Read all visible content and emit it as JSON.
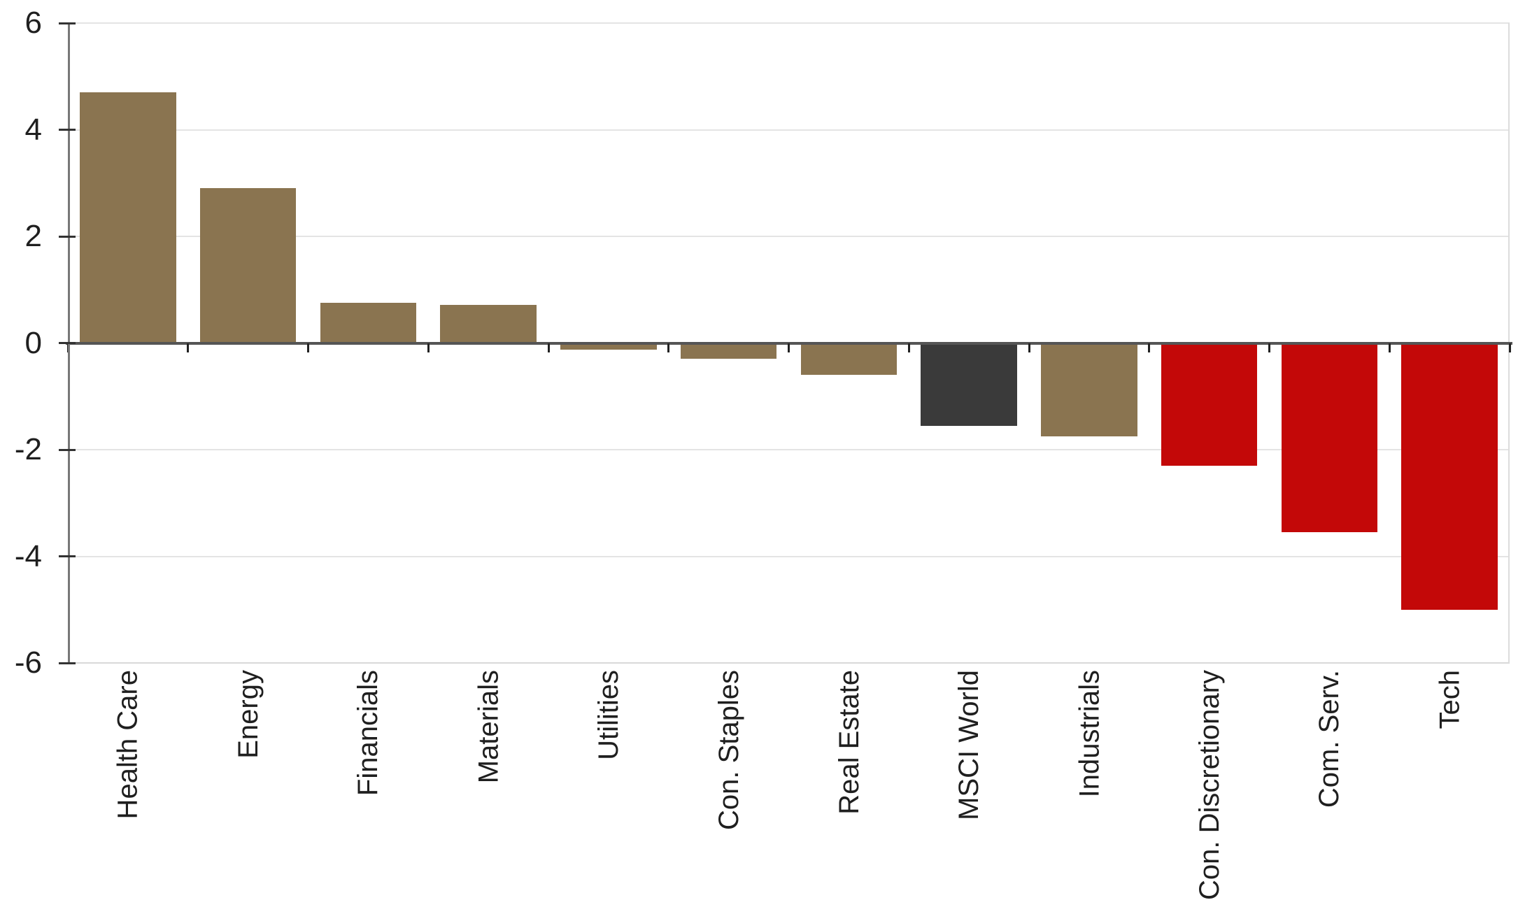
{
  "chart_data": {
    "type": "bar",
    "title": "",
    "xlabel": "",
    "ylabel": "",
    "categories": [
      "Health Care",
      "Energy",
      "Financials",
      "Materials",
      "Utilities",
      "Con. Staples",
      "Real Estate",
      "MSCI World",
      "Industrials",
      "Con. Discretionary",
      "Com. Serv.",
      "Tech"
    ],
    "values": [
      4.7,
      2.9,
      0.75,
      0.72,
      -0.13,
      -0.3,
      -0.6,
      -1.55,
      -1.75,
      -2.3,
      -3.55,
      -5.0
    ],
    "bar_colors": [
      "#8A7450",
      "#8A7450",
      "#8A7450",
      "#8A7450",
      "#8A7450",
      "#8A7450",
      "#8A7450",
      "#3A3A3A",
      "#8A7450",
      "#C30808",
      "#C30808",
      "#C30808"
    ],
    "palette": {
      "sector_bar": "#8A7450",
      "msci_world_bar": "#3A3A3A",
      "negative_highlight_bar": "#C30808"
    },
    "ylim": [
      -6,
      6
    ],
    "y_ticks": [
      6,
      4,
      2,
      0,
      -2,
      -4,
      -6
    ],
    "grid": true,
    "legend": false,
    "axis_colors": {
      "gridline": "#E4E4E4",
      "zero_line": "#555555",
      "axis_line": "#777777",
      "tick": "#222222",
      "label": "#1F1F1F",
      "border": "#DCDCDC"
    }
  }
}
